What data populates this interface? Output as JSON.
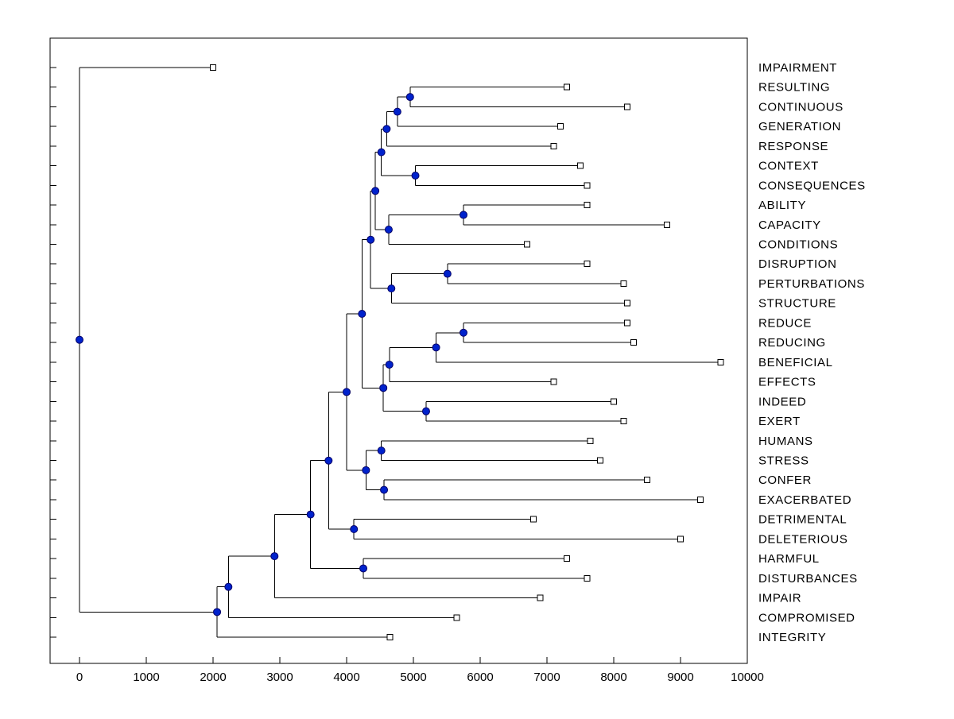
{
  "figure": {
    "title": "",
    "background": "#ffffff"
  },
  "chart_data": {
    "type": "dendrogram",
    "title": "",
    "xlabel": "",
    "ylabel": "",
    "orientation": "horizontal-right-labels",
    "grid": false,
    "legend": null,
    "xlim": [
      0,
      10000
    ],
    "xticks": [
      0,
      1000,
      2000,
      3000,
      4000,
      5000,
      6000,
      7000,
      8000,
      9000,
      10000
    ],
    "xtick_labels": [
      "0",
      "1000",
      "2000",
      "3000",
      "4000",
      "5000",
      "6000",
      "7000",
      "8000",
      "9000",
      "10000"
    ],
    "leaf_labels": [
      "IMPAIRMENT",
      "RESULTING",
      "CONTINUOUS",
      "GENERATION",
      "RESPONSE",
      "CONTEXT",
      "CONSEQUENCES",
      "ABILITY",
      "CAPACITY",
      "CONDITIONS",
      "DISRUPTION",
      "PERTURBATIONS",
      "STRUCTURE",
      "REDUCE",
      "REDUCING",
      "BENEFICIAL",
      "EFFECTS",
      "INDEED",
      "EXERT",
      "HUMANS",
      "STRESS",
      "CONFER",
      "EXACERBATED",
      "DETRIMENTAL",
      "DELETERIOUS",
      "HARMFUL",
      "DISTURBANCES",
      "IMPAIR",
      "COMPROMISED",
      "INTEGRITY"
    ],
    "colors": {
      "branch": "#000000",
      "internal_node_fill": "#0022cc",
      "internal_node_edge": "#000066",
      "leaf_marker_fill": "#ffffff",
      "leaf_marker_edge": "#000000",
      "axis": "#000000"
    },
    "tree": {
      "v": 0,
      "c": [
        {
          "label": "IMPAIRMENT",
          "v": 2000
        },
        {
          "v": 2060,
          "c": [
            {
              "v": 2230,
              "c": [
                {
                  "v": 2920,
                  "c": [
                    {
                      "v": 3460,
                      "c": [
                        {
                          "v": 3730,
                          "c": [
                            {
                              "v": 4000,
                              "c": [
                                {
                                  "v": 4230,
                                  "c": [
                                    {
                                      "v": 4360,
                                      "c": [
                                        {
                                          "v": 4430,
                                          "c": [
                                            {
                                              "v": 4520,
                                              "c": [
                                                {
                                                  "v": 4600,
                                                  "c": [
                                                    {
                                                      "v": 4760,
                                                      "c": [
                                                        {
                                                          "v": 4950,
                                                          "c": [
                                                            {
                                                              "label": "RESULTING",
                                                              "v": 7300
                                                            },
                                                            {
                                                              "label": "CONTINUOUS",
                                                              "v": 8200
                                                            }
                                                          ]
                                                        },
                                                        {
                                                          "label": "GENERATION",
                                                          "v": 7200
                                                        }
                                                      ]
                                                    },
                                                    {
                                                      "label": "RESPONSE",
                                                      "v": 7100
                                                    }
                                                  ]
                                                },
                                                {
                                                  "v": 5030,
                                                  "c": [
                                                    {
                                                      "label": "CONTEXT",
                                                      "v": 7500
                                                    },
                                                    {
                                                      "label": "CONSEQUENCES",
                                                      "v": 7600
                                                    }
                                                  ]
                                                }
                                              ]
                                            },
                                            {
                                              "v": 4630,
                                              "c": [
                                                {
                                                  "v": 5750,
                                                  "c": [
                                                    {
                                                      "label": "ABILITY",
                                                      "v": 7600
                                                    },
                                                    {
                                                      "label": "CAPACITY",
                                                      "v": 8800
                                                    }
                                                  ]
                                                },
                                                {
                                                  "label": "CONDITIONS",
                                                  "v": 6700
                                                }
                                              ]
                                            }
                                          ]
                                        },
                                        {
                                          "v": 4670,
                                          "c": [
                                            {
                                              "v": 5510,
                                              "c": [
                                                {
                                                  "label": "DISRUPTION",
                                                  "v": 7600
                                                },
                                                {
                                                  "label": "PERTURBATIONS",
                                                  "v": 8150
                                                }
                                              ]
                                            },
                                            {
                                              "label": "STRUCTURE",
                                              "v": 8200
                                            }
                                          ]
                                        }
                                      ]
                                    },
                                    {
                                      "v": 4550,
                                      "c": [
                                        {
                                          "v": 4640,
                                          "c": [
                                            {
                                              "v": 5340,
                                              "c": [
                                                {
                                                  "v": 5750,
                                                  "c": [
                                                    {
                                                      "label": "REDUCE",
                                                      "v": 8200
                                                    },
                                                    {
                                                      "label": "REDUCING",
                                                      "v": 8300
                                                    }
                                                  ]
                                                },
                                                {
                                                  "label": "BENEFICIAL",
                                                  "v": 9600
                                                }
                                              ]
                                            },
                                            {
                                              "label": "EFFECTS",
                                              "v": 7100
                                            }
                                          ]
                                        },
                                        {
                                          "v": 5190,
                                          "c": [
                                            {
                                              "label": "INDEED",
                                              "v": 8000
                                            },
                                            {
                                              "label": "EXERT",
                                              "v": 8150
                                            }
                                          ]
                                        }
                                      ]
                                    }
                                  ]
                                },
                                {
                                  "v": 4290,
                                  "c": [
                                    {
                                      "v": 4520,
                                      "c": [
                                        {
                                          "label": "HUMANS",
                                          "v": 7650
                                        },
                                        {
                                          "label": "STRESS",
                                          "v": 7800
                                        }
                                      ]
                                    },
                                    {
                                      "v": 4560,
                                      "c": [
                                        {
                                          "label": "CONFER",
                                          "v": 8500
                                        },
                                        {
                                          "label": "EXACERBATED",
                                          "v": 9300
                                        }
                                      ]
                                    }
                                  ]
                                }
                              ]
                            },
                            {
                              "v": 4110,
                              "c": [
                                {
                                  "label": "DETRIMENTAL",
                                  "v": 6800
                                },
                                {
                                  "label": "DELETERIOUS",
                                  "v": 9000
                                }
                              ]
                            }
                          ]
                        },
                        {
                          "v": 4250,
                          "c": [
                            {
                              "label": "HARMFUL",
                              "v": 7300
                            },
                            {
                              "label": "DISTURBANCES",
                              "v": 7600
                            }
                          ]
                        }
                      ]
                    },
                    {
                      "label": "IMPAIR",
                      "v": 6900
                    }
                  ]
                },
                {
                  "label": "COMPROMISED",
                  "v": 5650
                }
              ]
            },
            {
              "label": "INTEGRITY",
              "v": 4650
            }
          ]
        }
      ]
    }
  }
}
